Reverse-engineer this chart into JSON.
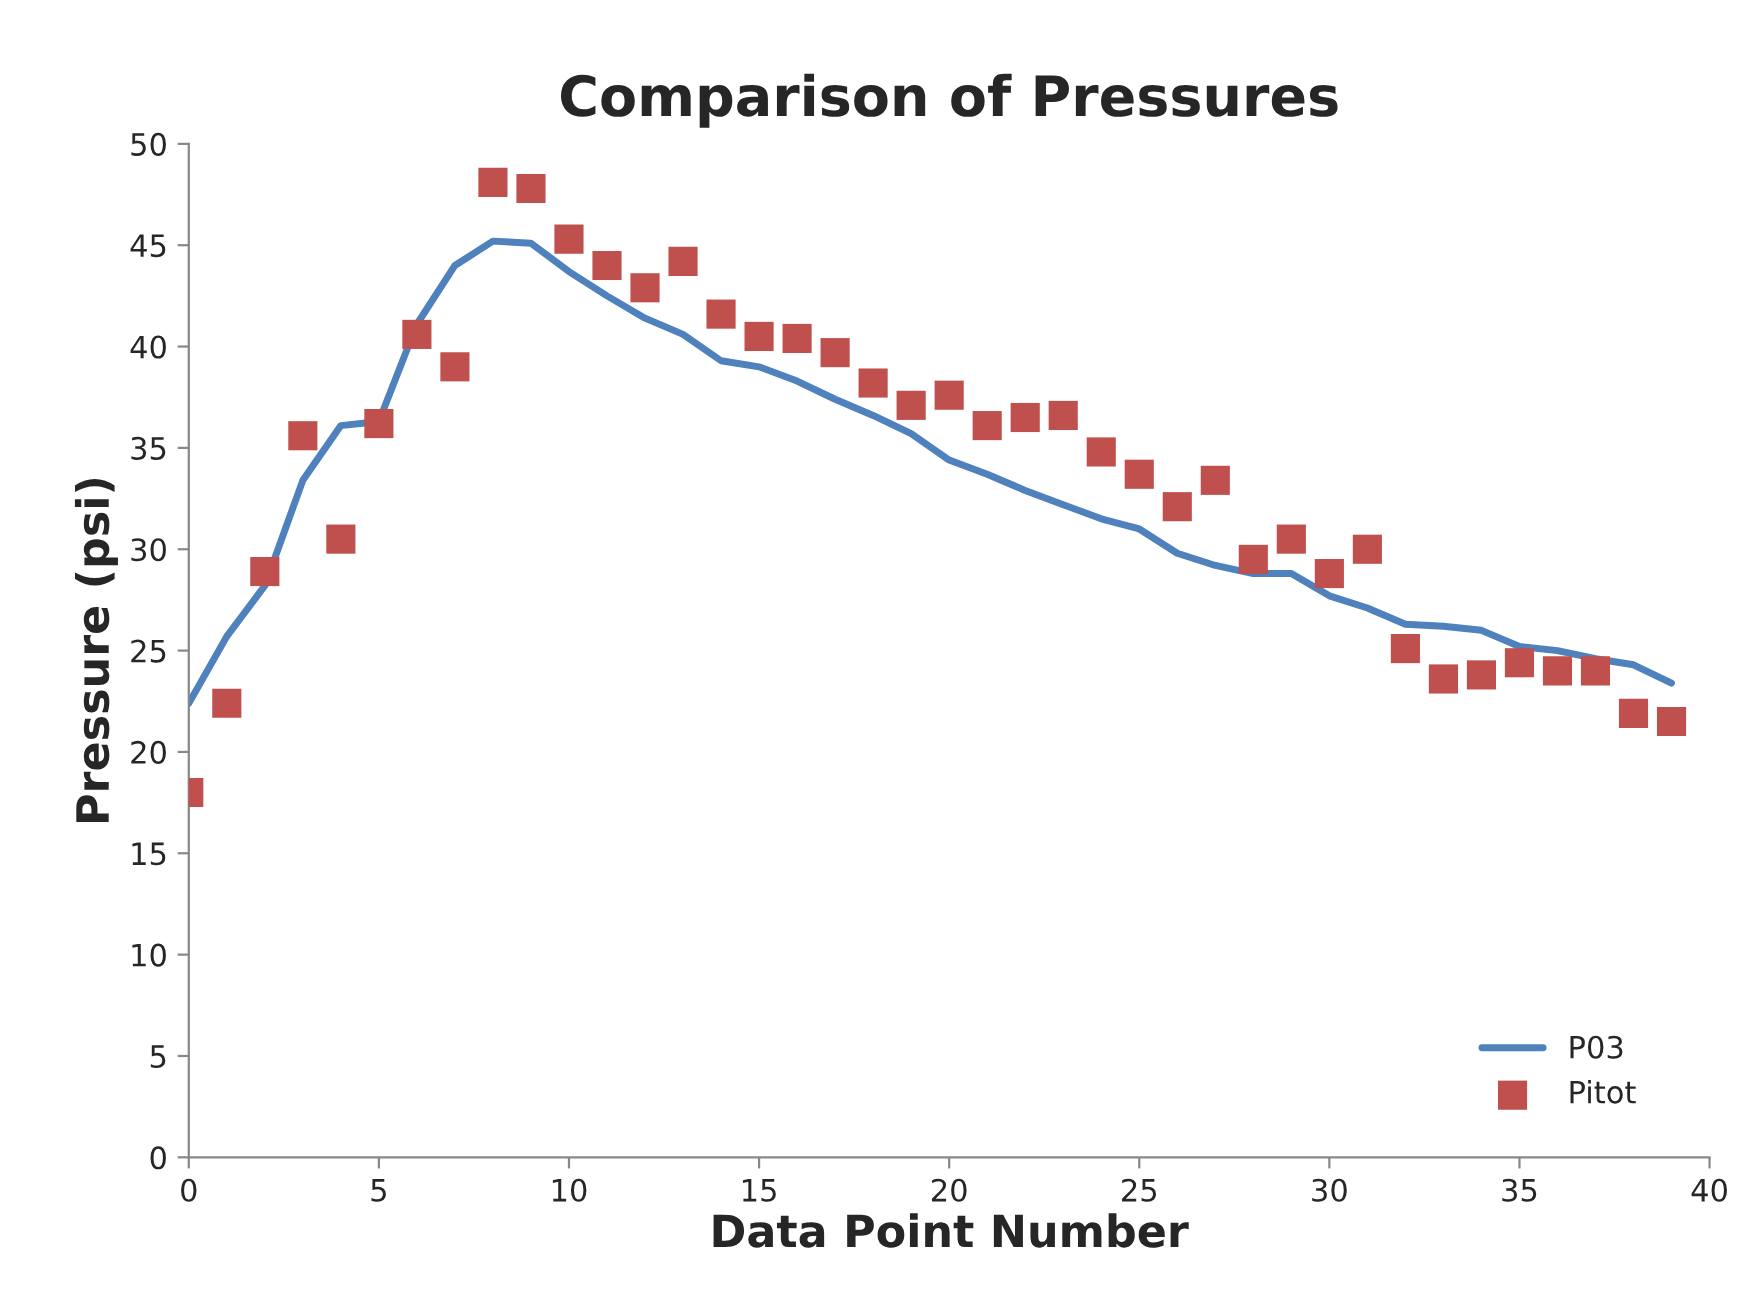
{
  "chart_data": {
    "type": "line",
    "title": "Comparison of Pressures",
    "xlabel": "Data Point Number",
    "ylabel": "Pressure (psi)",
    "x": [
      0,
      1,
      2,
      3,
      4,
      5,
      6,
      7,
      8,
      9,
      10,
      11,
      12,
      13,
      14,
      15,
      16,
      17,
      18,
      19,
      20,
      21,
      22,
      23,
      24,
      25,
      26,
      27,
      28,
      29,
      30,
      31,
      32,
      33,
      34,
      35,
      36,
      37,
      38,
      39
    ],
    "series": [
      {
        "name": "P03",
        "color": "#4f81bd",
        "marker": "none",
        "values": [
          22.4,
          25.7,
          28.2,
          33.4,
          36.1,
          36.3,
          41.1,
          44.0,
          45.2,
          45.1,
          43.7,
          42.5,
          41.4,
          40.6,
          39.3,
          39.0,
          38.3,
          37.4,
          36.6,
          35.7,
          34.4,
          33.7,
          32.9,
          32.2,
          31.5,
          31.0,
          29.8,
          29.2,
          28.8,
          28.8,
          27.7,
          27.1,
          26.3,
          26.2,
          26.0,
          25.2,
          25.0,
          24.6,
          24.3,
          23.4
        ]
      },
      {
        "name": "Pitot",
        "type": "scatter",
        "color": "#c0504d",
        "marker": "square",
        "values": [
          18.0,
          22.4,
          28.9,
          35.6,
          30.5,
          36.2,
          40.6,
          39.0,
          48.1,
          47.8,
          45.3,
          44.0,
          42.9,
          44.2,
          41.6,
          40.5,
          40.4,
          39.7,
          38.2,
          37.1,
          37.6,
          36.1,
          36.5,
          36.6,
          34.8,
          33.7,
          32.1,
          33.4,
          29.5,
          30.5,
          28.8,
          30.0,
          25.1,
          23.6,
          23.8,
          24.4,
          24.0,
          24.0,
          21.9,
          21.5
        ]
      }
    ],
    "xlim": [
      0,
      40
    ],
    "xticks": [
      0,
      5,
      10,
      15,
      20,
      25,
      30,
      35,
      40
    ],
    "ylim": [
      0,
      50
    ],
    "yticks": [
      0,
      5,
      10,
      15,
      20,
      25,
      30,
      35,
      40,
      45,
      50
    ],
    "grid": false,
    "legend": "bottom right"
  }
}
